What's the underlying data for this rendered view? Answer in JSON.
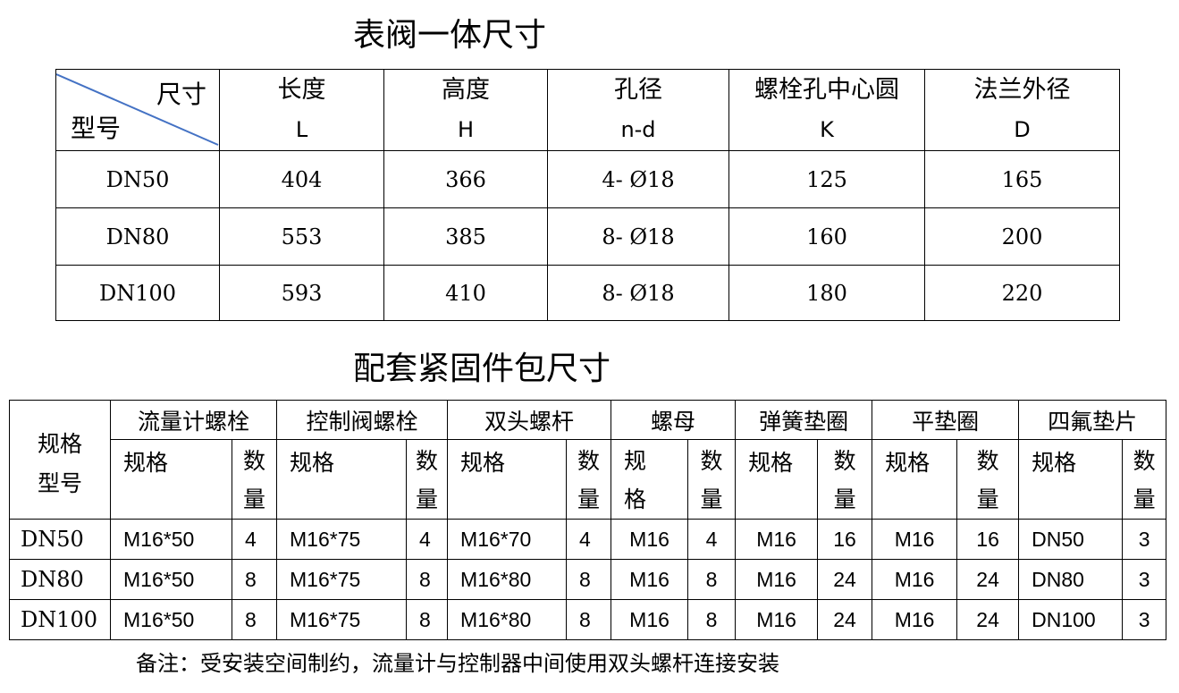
{
  "title1": "表阀一体尺寸",
  "table1": {
    "corner_top": "尺寸",
    "corner_bottom": "型号",
    "headers": [
      {
        "name": "长度",
        "sym": "L"
      },
      {
        "name": "高度",
        "sym": "H"
      },
      {
        "name": "孔径",
        "sym": "n-d"
      },
      {
        "name": "螺栓孔中心圆",
        "sym": "K"
      },
      {
        "name": "法兰外径",
        "sym": "D"
      }
    ],
    "rows": [
      [
        "DN50",
        "404",
        "366",
        "4- Ø18",
        "125",
        "165"
      ],
      [
        "DN80",
        "553",
        "385",
        "8- Ø18",
        "160",
        "200"
      ],
      [
        "DN100",
        "593",
        "410",
        "8- Ø18",
        "180",
        "220"
      ]
    ]
  },
  "title2": "配套紧固件包尺寸",
  "table2": {
    "corner": "规格\n型号",
    "groups": [
      "流量计螺栓",
      "控制阀螺栓",
      "双头螺杆",
      "螺母",
      "弹簧垫圈",
      "平垫圈",
      "四氟垫片"
    ],
    "spec_label": "规格",
    "qty_label": "数量",
    "rows": [
      [
        "DN50",
        "M16*50",
        "4",
        "M16*75",
        "4",
        "M16*70",
        "4",
        "M16",
        "4",
        "M16",
        "16",
        "M16",
        "16",
        "DN50",
        "3"
      ],
      [
        "DN80",
        "M16*50",
        "8",
        "M16*75",
        "8",
        "M16*80",
        "8",
        "M16",
        "8",
        "M16",
        "24",
        "M16",
        "24",
        "DN80",
        "3"
      ],
      [
        "DN100",
        "M16*50",
        "8",
        "M16*75",
        "8",
        "M16*80",
        "8",
        "M16",
        "8",
        "M16",
        "24",
        "M16",
        "24",
        "DN100",
        "3"
      ]
    ]
  },
  "note": "备注：受安装空间制约，流量计与控制器中间使用双头螺杆连接安装"
}
